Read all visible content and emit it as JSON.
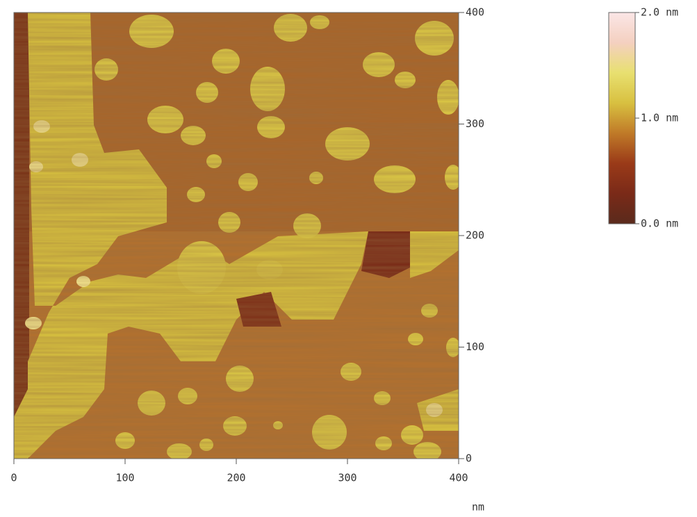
{
  "chart_data": {
    "type": "heatmap",
    "x_label": "nm",
    "xlim": [
      0,
      400
    ],
    "ylim": [
      0,
      400
    ],
    "xticks": [
      0,
      100,
      200,
      300,
      400
    ],
    "yticks": [
      0,
      100,
      200,
      300,
      400
    ],
    "colorbar": {
      "clim": [
        0,
        2
      ],
      "ticks": [
        {
          "value": 0,
          "label": "0.0 nm"
        },
        {
          "value": 1,
          "label": "1.0 nm"
        },
        {
          "value": 2,
          "label": "2.0 nm"
        }
      ],
      "colors": [
        "#5a2a1c",
        "#7a2a18",
        "#9a3a18",
        "#c07a28",
        "#d8c040",
        "#e8e070",
        "#f4d0c0",
        "#fbe6e6"
      ]
    }
  }
}
